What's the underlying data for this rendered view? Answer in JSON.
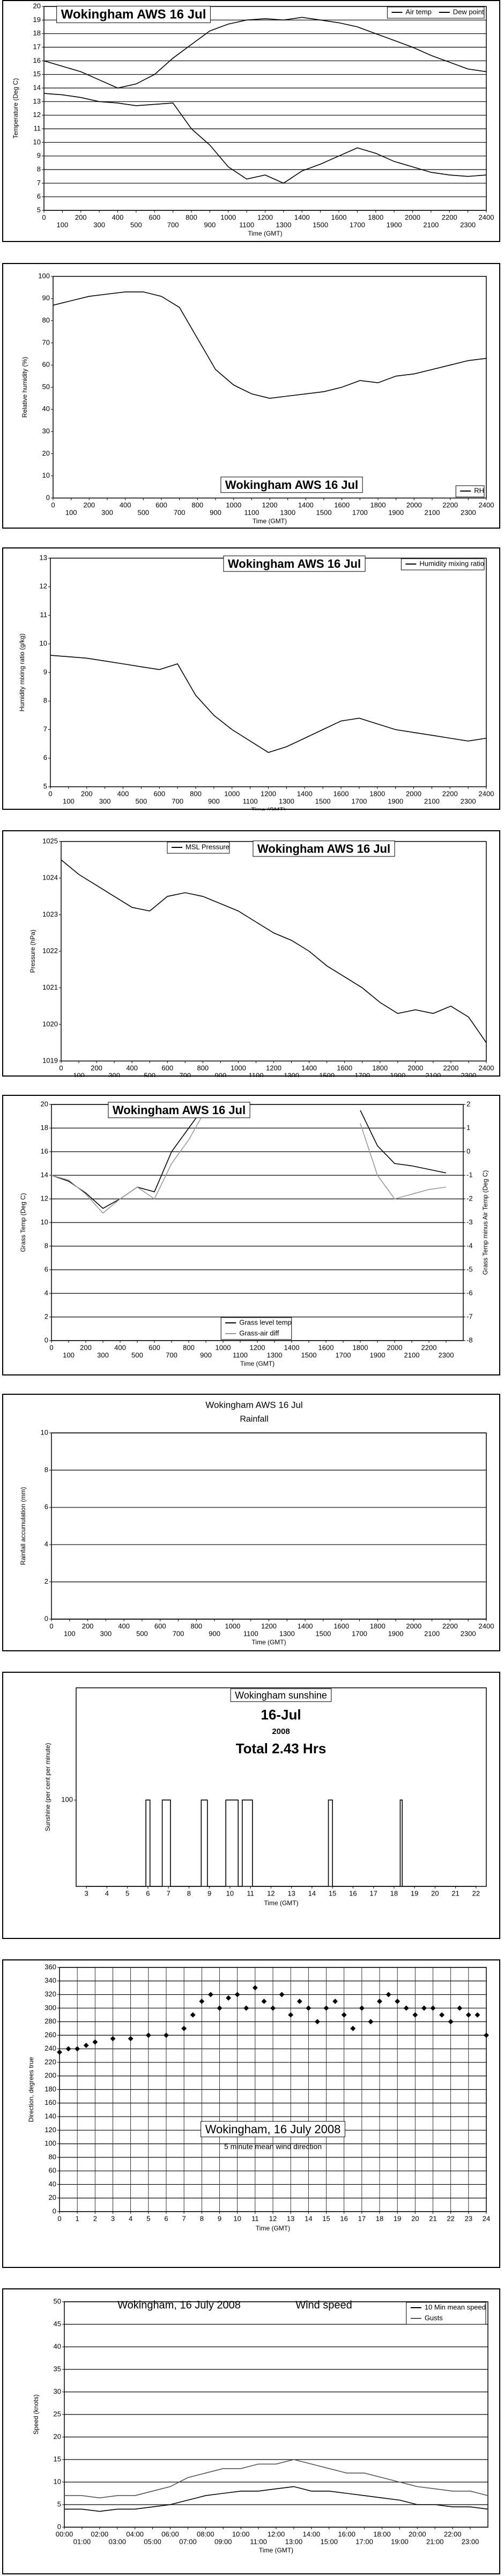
{
  "chart_data": [
    {
      "type": "line",
      "title": "Wokingham AWS 16 Jul",
      "xlabel": "Time (GMT)",
      "ylabel": "Temperature (Deg C)",
      "legend": "upper right",
      "grid": "y",
      "x": [
        0,
        100,
        200,
        300,
        400,
        500,
        600,
        700,
        800,
        900,
        1000,
        1100,
        1200,
        1300,
        1400,
        1500,
        1600,
        1700,
        1800,
        1900,
        2000,
        2100,
        2200,
        2300,
        2400
      ],
      "series": [
        {
          "name": "Air temp",
          "color": "#000000",
          "values": [
            16,
            15.6,
            15.2,
            14.6,
            14.0,
            14.3,
            15.0,
            16.2,
            17.2,
            18.2,
            18.7,
            19.0,
            19.1,
            19.0,
            19.2,
            19.0,
            18.8,
            18.5,
            18.0,
            17.5,
            17.0,
            16.4,
            15.9,
            15.4,
            15.2
          ]
        },
        {
          "name": "Dew point",
          "color": "#000000",
          "values": [
            13.6,
            13.5,
            13.3,
            13.0,
            12.9,
            12.7,
            12.8,
            12.9,
            11.0,
            9.8,
            8.2,
            7.3,
            7.6,
            7.0,
            7.9,
            8.4,
            9.0,
            9.6,
            9.2,
            8.6,
            8.2,
            7.8,
            7.6,
            7.5,
            7.6
          ]
        }
      ],
      "xlim": [
        0,
        2400
      ],
      "xticks": [
        0,
        100,
        200,
        300,
        400,
        500,
        600,
        700,
        800,
        900,
        1000,
        1100,
        1200,
        1300,
        1400,
        1500,
        1600,
        1700,
        1800,
        1900,
        2000,
        2100,
        2200,
        2300,
        2400
      ],
      "ylim": [
        5,
        20
      ],
      "yticks": [
        5,
        6,
        7,
        8,
        9,
        10,
        11,
        12,
        13,
        14,
        15,
        16,
        17,
        18,
        19,
        20
      ]
    },
    {
      "type": "line",
      "title": "Wokingham AWS 16 Jul",
      "xlabel": "Time (GMT)",
      "ylabel": "Relative humidity (%)",
      "legend": "lower right",
      "grid": false,
      "x": [
        0,
        100,
        200,
        300,
        400,
        500,
        600,
        700,
        800,
        900,
        1000,
        1100,
        1200,
        1300,
        1400,
        1500,
        1600,
        1700,
        1800,
        1900,
        2000,
        2100,
        2200,
        2300,
        2400
      ],
      "series": [
        {
          "name": "RH",
          "color": "#000000",
          "values": [
            87,
            89,
            91,
            92,
            93,
            93,
            91,
            86,
            72,
            58,
            51,
            47,
            45,
            46,
            47,
            48,
            50,
            53,
            52,
            55,
            56,
            58,
            60,
            62,
            63
          ]
        }
      ],
      "xlim": [
        0,
        2400
      ],
      "xticks": [
        0,
        100,
        200,
        300,
        400,
        500,
        600,
        700,
        800,
        900,
        1000,
        1100,
        1200,
        1300,
        1400,
        1500,
        1600,
        1700,
        1800,
        1900,
        2000,
        2100,
        2200,
        2300,
        2400
      ],
      "ylim": [
        0,
        100
      ],
      "yticks": [
        0,
        10,
        20,
        30,
        40,
        50,
        60,
        70,
        80,
        90,
        100
      ]
    },
    {
      "type": "line",
      "title": "Wokingham AWS 16 Jul",
      "xlabel": "Time (GMT)",
      "ylabel": "Humidity mixing ratio (g/kg)",
      "legend": "upper right",
      "grid": false,
      "x": [
        0,
        100,
        200,
        300,
        400,
        500,
        600,
        700,
        800,
        900,
        1000,
        1100,
        1200,
        1300,
        1400,
        1500,
        1600,
        1700,
        1800,
        1900,
        2000,
        2100,
        2200,
        2300,
        2400
      ],
      "series": [
        {
          "name": "Humidity mixing ratio",
          "color": "#000000",
          "values": [
            9.6,
            9.55,
            9.5,
            9.4,
            9.3,
            9.2,
            9.1,
            9.3,
            8.2,
            7.5,
            7.0,
            6.6,
            6.2,
            6.4,
            6.7,
            7.0,
            7.3,
            7.4,
            7.2,
            7.0,
            6.9,
            6.8,
            6.7,
            6.6,
            6.7
          ]
        }
      ],
      "xlim": [
        0,
        2400
      ],
      "xticks": [
        0,
        100,
        200,
        300,
        400,
        500,
        600,
        700,
        800,
        900,
        1000,
        1100,
        1200,
        1300,
        1400,
        1500,
        1600,
        1700,
        1800,
        1900,
        2000,
        2100,
        2200,
        2300,
        2400
      ],
      "ylim": [
        5,
        13
      ],
      "yticks": [
        5,
        6,
        7,
        8,
        9,
        10,
        11,
        12,
        13
      ]
    },
    {
      "type": "line",
      "title": "Wokingham AWS 16 Jul",
      "xlabel": "Time (GMT)",
      "ylabel": "Pressure (hPa)",
      "legend": "upper left",
      "grid": false,
      "x": [
        0,
        100,
        200,
        300,
        400,
        500,
        600,
        700,
        800,
        900,
        1000,
        1100,
        1200,
        1300,
        1400,
        1500,
        1600,
        1700,
        1800,
        1900,
        2000,
        2100,
        2200,
        2300,
        2400
      ],
      "series": [
        {
          "name": "MSL Pressure",
          "color": "#000000",
          "values": [
            1024.5,
            1024.1,
            1023.8,
            1023.5,
            1023.2,
            1023.1,
            1023.5,
            1023.6,
            1023.5,
            1023.3,
            1023.1,
            1022.8,
            1022.5,
            1022.3,
            1022.0,
            1021.6,
            1021.3,
            1021.0,
            1020.6,
            1020.3,
            1020.4,
            1020.3,
            1020.5,
            1020.2,
            1019.5
          ]
        }
      ],
      "xlim": [
        0,
        2400
      ],
      "xticks": [
        0,
        100,
        200,
        300,
        400,
        500,
        600,
        700,
        800,
        900,
        1000,
        1100,
        1200,
        1300,
        1400,
        1500,
        1600,
        1700,
        1800,
        1900,
        2000,
        2100,
        2200,
        2300,
        2400
      ],
      "ylim": [
        1019,
        1025
      ],
      "yticks": [
        1019,
        1020,
        1021,
        1022,
        1023,
        1024,
        1025
      ]
    },
    {
      "type": "line",
      "title": "Wokingham AWS 16 Jul",
      "xlabel": "Time (GMT)",
      "ylabel": "Grass Temp (Deg C)",
      "y2label": "Grass Temp minus Air Temp (Deg C)",
      "legend": "lower center",
      "grid": "y",
      "x": [
        0,
        100,
        200,
        300,
        400,
        500,
        600,
        700,
        800,
        900,
        1000,
        1100,
        1200,
        1300,
        1400,
        1500,
        1600,
        1700,
        1800,
        1900,
        2000,
        2100,
        2200,
        2300
      ],
      "series": [
        {
          "name": "Grass level temp",
          "color": "#000000",
          "values": [
            14,
            13.5,
            12.5,
            11.2,
            12,
            13,
            12.6,
            16,
            18,
            20,
            null,
            null,
            null,
            null,
            null,
            null,
            null,
            null,
            19.5,
            16.5,
            15,
            14.8,
            14.5,
            14.2
          ]
        },
        {
          "name": "Grass-air diff",
          "color": "#999999",
          "axis": "y2",
          "values": [
            -1,
            -1.2,
            -1.8,
            -2.6,
            -2,
            -1.5,
            -2,
            -0.5,
            0.5,
            1.8,
            null,
            null,
            null,
            null,
            null,
            null,
            null,
            null,
            1.2,
            -1,
            -2,
            -1.8,
            -1.6,
            -1.5
          ]
        }
      ],
      "xlim": [
        0,
        2400
      ],
      "xticks": [
        0,
        100,
        200,
        300,
        400,
        500,
        600,
        700,
        800,
        900,
        1000,
        1100,
        1200,
        1300,
        1400,
        1500,
        1600,
        1700,
        1800,
        1900,
        2000,
        2100,
        2200,
        2300
      ],
      "ylim": [
        0,
        20
      ],
      "yticks": [
        0,
        2,
        4,
        6,
        8,
        10,
        12,
        14,
        16,
        18,
        20
      ],
      "y2lim": [
        -8,
        2
      ],
      "y2ticks": [
        -8,
        -7,
        -6,
        -5,
        -4,
        -3,
        -2,
        -1,
        0,
        1,
        2
      ]
    },
    {
      "type": "line",
      "title": "Wokingham AWS 16 Jul",
      "subtitle": "Rainfall",
      "xlabel": "Time (GMT)",
      "ylabel": "Rainfall accumulation (mm)",
      "grid": "y",
      "x": [
        0,
        2400
      ],
      "series": [
        {
          "name": "Rainfall",
          "color": "#000000",
          "values": [
            0,
            0
          ]
        }
      ],
      "xlim": [
        0,
        2400
      ],
      "xticks": [
        0,
        100,
        200,
        300,
        400,
        500,
        600,
        700,
        800,
        900,
        1000,
        1100,
        1200,
        1300,
        1400,
        1500,
        1600,
        1700,
        1800,
        1900,
        2000,
        2100,
        2200,
        2300,
        2400
      ],
      "ylim": [
        0,
        10
      ],
      "yticks": [
        0,
        2,
        4,
        6,
        8,
        10
      ]
    },
    {
      "type": "line",
      "title": "Wokingham sunshine",
      "subtitle": "16-Jul",
      "annotations": [
        "2008",
        "Total 2.43 Hrs"
      ],
      "xlabel": "Time (GMT)",
      "ylabel": "Sunshine (per cent per minute)",
      "grid": false,
      "x": [
        3,
        5.9,
        5.9,
        6.1,
        6.1,
        6.7,
        6.7,
        7.1,
        7.1,
        8.6,
        8.6,
        8.9,
        8.9,
        9.8,
        9.8,
        10.4,
        10.4,
        10.6,
        10.6,
        11.1,
        11.1,
        14.8,
        14.8,
        15.0,
        15.0,
        18.3,
        18.3,
        18.4,
        18.4,
        22
      ],
      "series": [
        {
          "name": "Sunshine",
          "color": "#000000",
          "values": [
            0,
            0,
            100,
            100,
            0,
            0,
            100,
            100,
            0,
            0,
            100,
            100,
            0,
            0,
            100,
            100,
            0,
            0,
            100,
            100,
            0,
            0,
            100,
            100,
            0,
            0,
            100,
            100,
            0,
            0
          ]
        }
      ],
      "xlim": [
        2.5,
        22.5
      ],
      "xticks": [
        3,
        4,
        5,
        6,
        7,
        8,
        9,
        10,
        11,
        12,
        13,
        14,
        15,
        16,
        17,
        18,
        19,
        20,
        21,
        22
      ],
      "ylim": [
        0,
        230
      ],
      "yticks": [
        100
      ]
    },
    {
      "type": "scatter",
      "title": "Wokingham,  16 July 2008",
      "subtitle": "5 minute mean wind direction",
      "xlabel": "Time (GMT)",
      "ylabel": "Direction, degrees true",
      "grid": "both",
      "x": [
        0,
        0.5,
        1,
        1.5,
        2,
        3,
        4,
        5,
        6,
        7,
        7.5,
        8,
        8.5,
        9,
        9.5,
        10,
        10.5,
        11,
        11.5,
        12,
        12.5,
        13,
        13.5,
        14,
        14.5,
        15,
        15.5,
        16,
        16.5,
        17,
        17.5,
        18,
        18.5,
        19,
        19.5,
        20,
        20.5,
        21,
        21.5,
        22,
        22.5,
        23,
        23.5,
        24
      ],
      "series": [
        {
          "name": "Direction",
          "color": "#000000",
          "values": [
            235,
            240,
            240,
            245,
            250,
            255,
            255,
            260,
            260,
            270,
            290,
            310,
            320,
            300,
            315,
            320,
            300,
            330,
            310,
            300,
            320,
            290,
            310,
            300,
            280,
            300,
            310,
            290,
            270,
            300,
            280,
            310,
            320,
            310,
            300,
            290,
            300,
            300,
            290,
            280,
            300,
            290,
            290,
            260
          ]
        }
      ],
      "xlim": [
        0,
        24
      ],
      "xticks": [
        0,
        1,
        2,
        3,
        4,
        5,
        6,
        7,
        8,
        9,
        10,
        11,
        12,
        13,
        14,
        15,
        16,
        17,
        18,
        19,
        20,
        21,
        22,
        23,
        24
      ],
      "ylim": [
        0,
        360
      ],
      "yticks": [
        0,
        20,
        40,
        60,
        80,
        100,
        120,
        140,
        160,
        180,
        200,
        220,
        240,
        260,
        280,
        300,
        320,
        340,
        360
      ]
    },
    {
      "type": "line",
      "title": "Wokingham,  16 July 2008",
      "subtitle": "Wind speed",
      "xlabel": "Time (GMT)",
      "ylabel": "Speed (knots)",
      "legend": "upper right",
      "grid": "y",
      "x": [
        0,
        1,
        2,
        3,
        4,
        5,
        6,
        7,
        8,
        9,
        10,
        11,
        12,
        13,
        14,
        15,
        16,
        17,
        18,
        19,
        20,
        21,
        22,
        23,
        24
      ],
      "series": [
        {
          "name": "10 Min mean speed",
          "color": "#000000",
          "values": [
            4,
            4,
            3.5,
            4,
            4,
            4.5,
            5,
            6,
            7,
            7.5,
            8,
            8,
            8.5,
            9,
            8,
            8,
            7.5,
            7,
            6.5,
            6,
            5,
            5,
            4.5,
            4.5,
            4
          ]
        },
        {
          "name": "Gusts",
          "color": "#555555",
          "values": [
            7,
            7,
            6.5,
            7,
            7,
            8,
            9,
            11,
            12,
            13,
            13,
            14,
            14,
            15,
            14,
            13,
            12,
            12,
            11,
            10,
            9,
            8.5,
            8,
            8,
            7
          ]
        }
      ],
      "xlim": [
        0,
        24
      ],
      "xticks": [
        {
          "value": 0,
          "label": "00:00"
        },
        {
          "value": 1,
          "label": "01:00"
        },
        {
          "value": 2,
          "label": "02:00"
        },
        {
          "value": 3,
          "label": "03:00"
        },
        {
          "value": 4,
          "label": "04:00"
        },
        {
          "value": 5,
          "label": "05:00"
        },
        {
          "value": 6,
          "label": "06:00"
        },
        {
          "value": 7,
          "label": "07:00"
        },
        {
          "value": 8,
          "label": "08:00"
        },
        {
          "value": 9,
          "label": "09:00"
        },
        {
          "value": 10,
          "label": "10:00"
        },
        {
          "value": 11,
          "label": "11:00"
        },
        {
          "value": 12,
          "label": "12:00"
        },
        {
          "value": 13,
          "label": "13:00"
        },
        {
          "value": 14,
          "label": "14:00"
        },
        {
          "value": 15,
          "label": "15:00"
        },
        {
          "value": 16,
          "label": "16:00"
        },
        {
          "value": 17,
          "label": "17:00"
        },
        {
          "value": 18,
          "label": "18:00"
        },
        {
          "value": 19,
          "label": "19:00"
        },
        {
          "value": 20,
          "label": "20:00"
        },
        {
          "value": 21,
          "label": "21:00"
        },
        {
          "value": 22,
          "label": "22:00"
        },
        {
          "value": 23,
          "label": "23:00"
        }
      ],
      "ylim": [
        0,
        50
      ],
      "yticks": [
        0,
        5,
        10,
        15,
        20,
        25,
        30,
        35,
        40,
        45,
        50
      ]
    }
  ]
}
